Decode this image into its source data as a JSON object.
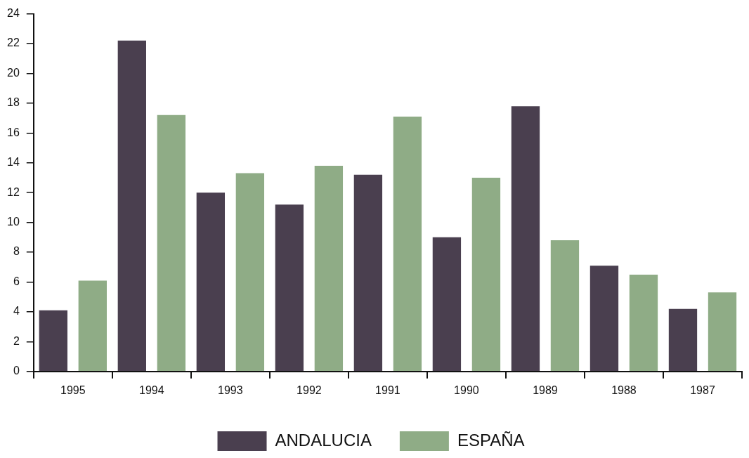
{
  "chart_data": {
    "type": "bar",
    "categories": [
      "1995",
      "1994",
      "1993",
      "1992",
      "1991",
      "1990",
      "1989",
      "1988",
      "1987"
    ],
    "series": [
      {
        "name": "ANDALUCIA",
        "color": "#4a3f4f",
        "values": [
          4.1,
          22.2,
          12.0,
          11.2,
          13.2,
          9.0,
          17.8,
          7.1,
          4.2
        ]
      },
      {
        "name": "ESPAÑA",
        "color": "#8fac86",
        "values": [
          6.1,
          17.2,
          13.3,
          13.8,
          17.1,
          13.0,
          8.8,
          6.5,
          5.3
        ]
      }
    ],
    "ylim": [
      0,
      24
    ],
    "yticks": [
      0,
      2,
      4,
      6,
      8,
      10,
      12,
      14,
      16,
      18,
      20,
      22,
      24
    ],
    "grid": false,
    "legend": "bottom"
  }
}
